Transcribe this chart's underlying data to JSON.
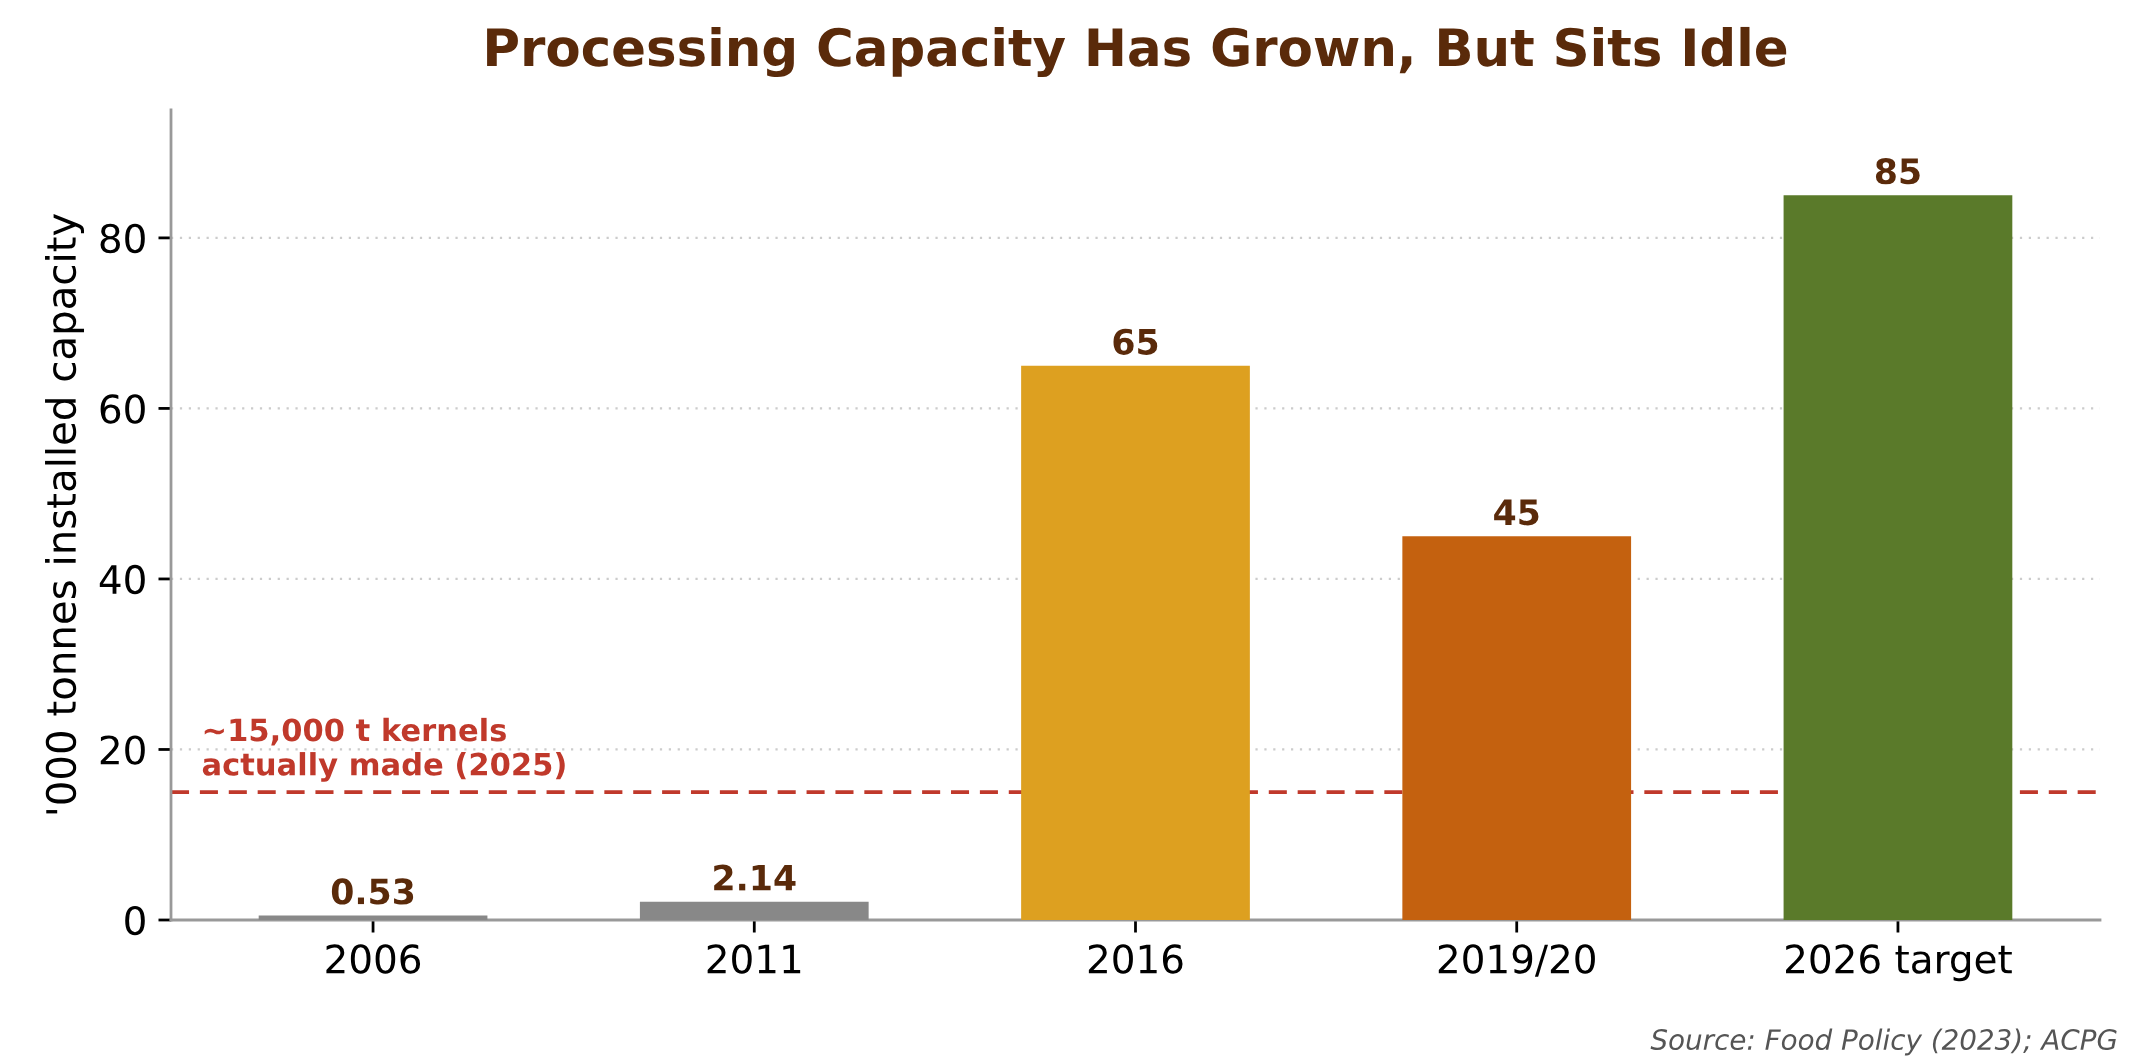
{
  "chart_data": {
    "type": "bar",
    "title": "Processing Capacity Has Grown, But Sits Idle",
    "ylabel": "'000 tonnes installed capacity",
    "categories": [
      "2006",
      "2011",
      "2016",
      "2019/20",
      "2026 target"
    ],
    "values": [
      0.53,
      2.14,
      65,
      45,
      85
    ],
    "colors": [
      "#888888",
      "#888888",
      "#dda020",
      "#c4610f",
      "#5a7a2a"
    ],
    "ylim": [
      0,
      95
    ],
    "yticks": [
      0,
      20,
      40,
      60,
      80
    ],
    "grid": "y",
    "data_labels": true,
    "ref_lines": [
      {
        "axis": "y",
        "value": 15,
        "label": "~15,000 t kernels\nactually made (2025)",
        "color": "#c0392b",
        "line_style": "dashed"
      }
    ],
    "annotations": [
      "Source: Food Policy (2023); ACPG"
    ]
  }
}
